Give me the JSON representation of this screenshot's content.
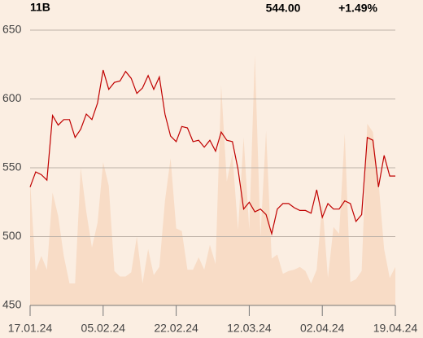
{
  "chart_data": {
    "type": "line",
    "title": "11B",
    "last_price": "544.00",
    "change": "+1.49%",
    "change_color": "#1a9a00",
    "categories": [
      "17.01.24",
      null,
      null,
      null,
      null,
      null,
      null,
      null,
      null,
      null,
      null,
      null,
      null,
      "05.02.24",
      null,
      null,
      null,
      null,
      null,
      null,
      null,
      null,
      null,
      null,
      null,
      null,
      "22.02.24",
      null,
      null,
      null,
      null,
      null,
      null,
      null,
      null,
      null,
      null,
      null,
      null,
      "12.03.24",
      null,
      null,
      null,
      null,
      null,
      null,
      null,
      null,
      null,
      null,
      null,
      null,
      "02.04.24",
      null,
      null,
      null,
      null,
      null,
      null,
      null,
      null,
      null,
      null,
      null,
      null,
      "19.04.24"
    ],
    "ylim": [
      450,
      650
    ],
    "yticks": [
      450,
      500,
      550,
      600,
      650
    ],
    "grid": true,
    "series": [
      {
        "type": "area",
        "color": "#f8dcc6",
        "values": [
          540,
          475,
          486,
          476,
          532,
          515,
          486,
          466,
          466,
          550,
          518,
          492,
          510,
          554,
          537,
          475,
          471,
          471,
          474,
          500,
          466,
          491,
          472,
          478,
          526,
          557,
          506,
          504,
          476,
          476,
          485,
          476,
          494,
          480,
          610,
          540,
          560,
          505,
          572,
          505,
          632,
          500,
          577,
          484,
          487,
          473,
          475,
          476,
          478,
          475,
          466,
          476,
          525,
          470,
          507,
          502,
          575,
          467,
          469,
          475,
          582,
          576,
          540,
          491,
          470,
          478
        ]
      },
      {
        "type": "line",
        "color": "#c00000",
        "values": [
          536,
          547,
          545,
          541,
          588,
          581,
          585,
          585,
          572,
          578,
          589,
          585,
          597,
          621,
          607,
          612,
          613,
          620,
          615,
          604,
          608,
          617,
          607,
          616,
          589,
          573,
          569,
          580,
          579,
          569,
          570,
          565,
          570,
          562,
          576,
          570,
          569,
          549,
          520,
          525,
          518,
          520,
          516,
          502,
          520,
          524,
          524,
          521,
          519,
          519,
          517,
          534,
          514,
          524,
          520,
          520,
          526,
          524,
          511,
          516,
          572,
          570,
          536,
          559,
          544,
          544
        ]
      }
    ]
  }
}
